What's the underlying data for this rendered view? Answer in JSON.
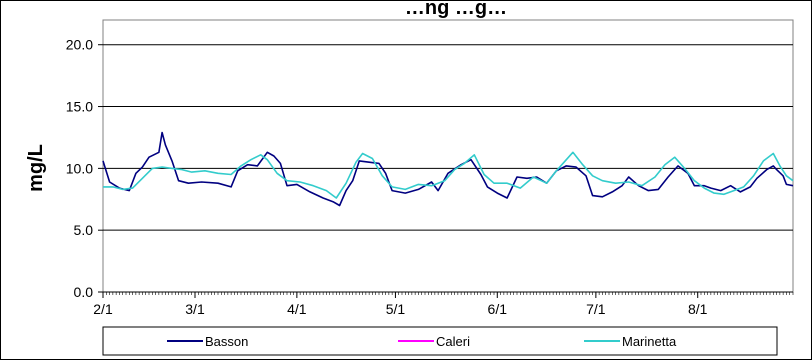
{
  "chart_data": {
    "type": "line",
    "title": "…ng  …g…",
    "ylabel": "mg/L",
    "xlabel": "",
    "ylim": [
      0,
      22
    ],
    "yticks": [
      "0.0",
      "5.0",
      "10.0",
      "15.0",
      "20.0"
    ],
    "ytick_values": [
      0,
      5,
      10,
      15,
      20
    ],
    "xticks": [
      "2/1",
      "3/1",
      "4/1",
      "5/1",
      "6/1",
      "7/1",
      "8/1"
    ],
    "xlim": [
      "2/1",
      "8/30"
    ],
    "grid": true,
    "legend_position": "bottom",
    "series": [
      {
        "name": "Basson",
        "color": "#000080",
        "points": [
          [
            "2/1",
            10.6
          ],
          [
            "2/3",
            8.9
          ],
          [
            "2/6",
            8.4
          ],
          [
            "2/9",
            8.2
          ],
          [
            "2/11",
            9.6
          ],
          [
            "2/13",
            10.1
          ],
          [
            "2/15",
            10.9
          ],
          [
            "2/18",
            11.3
          ],
          [
            "2/19",
            12.9
          ],
          [
            "2/20",
            11.9
          ],
          [
            "2/22",
            10.6
          ],
          [
            "2/24",
            9.0
          ],
          [
            "2/27",
            8.8
          ],
          [
            "3/3",
            8.9
          ],
          [
            "3/8",
            8.8
          ],
          [
            "3/12",
            8.5
          ],
          [
            "3/14",
            9.8
          ],
          [
            "3/17",
            10.3
          ],
          [
            "3/20",
            10.2
          ],
          [
            "3/23",
            11.3
          ],
          [
            "3/25",
            11.0
          ],
          [
            "3/27",
            10.4
          ],
          [
            "3/29",
            8.6
          ],
          [
            "4/1",
            8.7
          ],
          [
            "4/5",
            8.1
          ],
          [
            "4/9",
            7.6
          ],
          [
            "4/12",
            7.3
          ],
          [
            "4/14",
            7.0
          ],
          [
            "4/16",
            8.2
          ],
          [
            "4/18",
            9.0
          ],
          [
            "4/20",
            10.6
          ],
          [
            "4/23",
            10.5
          ],
          [
            "4/26",
            10.4
          ],
          [
            "4/28",
            9.6
          ],
          [
            "4/30",
            8.2
          ],
          [
            "5/4",
            8.0
          ],
          [
            "5/8",
            8.3
          ],
          [
            "5/12",
            8.9
          ],
          [
            "5/14",
            8.2
          ],
          [
            "5/17",
            9.6
          ],
          [
            "5/21",
            10.3
          ],
          [
            "5/24",
            10.7
          ],
          [
            "5/27",
            9.5
          ],
          [
            "5/29",
            8.5
          ],
          [
            "6/1",
            8.0
          ],
          [
            "6/4",
            7.6
          ],
          [
            "6/7",
            9.3
          ],
          [
            "6/10",
            9.2
          ],
          [
            "6/13",
            9.3
          ],
          [
            "6/16",
            8.8
          ],
          [
            "6/19",
            9.8
          ],
          [
            "6/22",
            10.2
          ],
          [
            "6/25",
            10.1
          ],
          [
            "6/28",
            9.4
          ],
          [
            "6/30",
            7.8
          ],
          [
            "7/3",
            7.7
          ],
          [
            "7/6",
            8.1
          ],
          [
            "7/9",
            8.6
          ],
          [
            "7/11",
            9.3
          ],
          [
            "7/14",
            8.6
          ],
          [
            "7/17",
            8.2
          ],
          [
            "7/20",
            8.3
          ],
          [
            "7/23",
            9.3
          ],
          [
            "7/26",
            10.2
          ],
          [
            "7/29",
            9.6
          ],
          [
            "7/31",
            8.6
          ],
          [
            "8/3",
            8.6
          ],
          [
            "8/5",
            8.4
          ],
          [
            "8/8",
            8.2
          ],
          [
            "8/11",
            8.6
          ],
          [
            "8/14",
            8.1
          ],
          [
            "8/17",
            8.5
          ],
          [
            "8/19",
            9.2
          ],
          [
            "8/22",
            9.9
          ],
          [
            "8/24",
            10.2
          ],
          [
            "8/25",
            9.9
          ],
          [
            "8/27",
            9.4
          ],
          [
            "8/28",
            8.7
          ],
          [
            "8/30",
            8.6
          ]
        ]
      },
      {
        "name": "Caleri",
        "color": "#ff00ff",
        "points": []
      },
      {
        "name": "Marinetta",
        "color": "#33cccc",
        "points": [
          [
            "2/1",
            8.5
          ],
          [
            "2/4",
            8.5
          ],
          [
            "2/7",
            8.3
          ],
          [
            "2/10",
            8.4
          ],
          [
            "2/13",
            9.2
          ],
          [
            "2/16",
            10.0
          ],
          [
            "2/19",
            10.1
          ],
          [
            "2/22",
            10.0
          ],
          [
            "2/25",
            9.9
          ],
          [
            "2/28",
            9.7
          ],
          [
            "3/4",
            9.8
          ],
          [
            "3/8",
            9.6
          ],
          [
            "3/12",
            9.5
          ],
          [
            "3/15",
            10.2
          ],
          [
            "3/18",
            10.7
          ],
          [
            "3/21",
            11.1
          ],
          [
            "3/23",
            10.7
          ],
          [
            "3/26",
            9.6
          ],
          [
            "3/29",
            9.0
          ],
          [
            "4/2",
            8.9
          ],
          [
            "4/6",
            8.6
          ],
          [
            "4/10",
            8.2
          ],
          [
            "4/13",
            7.6
          ],
          [
            "4/16",
            8.8
          ],
          [
            "4/19",
            10.5
          ],
          [
            "4/21",
            11.2
          ],
          [
            "4/24",
            10.8
          ],
          [
            "4/27",
            9.4
          ],
          [
            "4/30",
            8.5
          ],
          [
            "5/4",
            8.3
          ],
          [
            "5/8",
            8.7
          ],
          [
            "5/12",
            8.6
          ],
          [
            "5/16",
            9.0
          ],
          [
            "5/19",
            9.9
          ],
          [
            "5/22",
            10.4
          ],
          [
            "5/25",
            11.1
          ],
          [
            "5/28",
            9.5
          ],
          [
            "5/31",
            8.8
          ],
          [
            "6/4",
            8.8
          ],
          [
            "6/8",
            8.4
          ],
          [
            "6/12",
            9.3
          ],
          [
            "6/16",
            8.8
          ],
          [
            "6/19",
            9.8
          ],
          [
            "6/22",
            10.7
          ],
          [
            "6/24",
            11.3
          ],
          [
            "6/27",
            10.3
          ],
          [
            "6/30",
            9.4
          ],
          [
            "7/3",
            9.0
          ],
          [
            "7/7",
            8.8
          ],
          [
            "7/11",
            8.9
          ],
          [
            "7/15",
            8.6
          ],
          [
            "7/19",
            9.3
          ],
          [
            "7/22",
            10.3
          ],
          [
            "7/25",
            10.9
          ],
          [
            "7/28",
            10.0
          ],
          [
            "7/31",
            9.0
          ],
          [
            "8/3",
            8.4
          ],
          [
            "8/6",
            8.0
          ],
          [
            "8/9",
            7.9
          ],
          [
            "8/12",
            8.2
          ],
          [
            "8/15",
            8.5
          ],
          [
            "8/18",
            9.4
          ],
          [
            "8/21",
            10.6
          ],
          [
            "8/24",
            11.2
          ],
          [
            "8/26",
            10.2
          ],
          [
            "8/28",
            9.4
          ],
          [
            "8/30",
            9.0
          ]
        ]
      }
    ]
  }
}
